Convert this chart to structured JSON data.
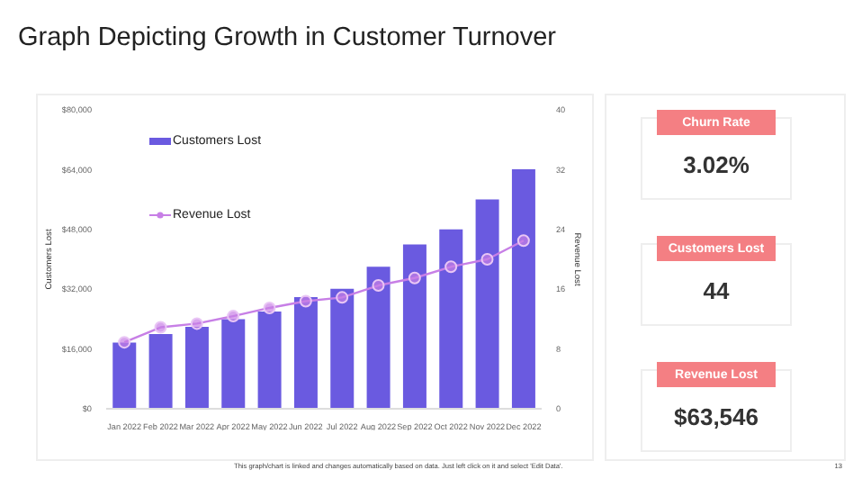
{
  "chart_data": [
    {
      "type": "bar",
      "title": "Graph Depicting Growth in Customer Turnover",
      "ylabel": "Customers Lost",
      "y2label": "Revenue Lost",
      "categories": [
        "Jan 2022",
        "Feb 2022",
        "Mar 2022",
        "Apr 2022",
        "May 2022",
        "Jun 2022",
        "Jul 2022",
        "Aug 2022",
        "Sep 2022",
        "Oct 2022",
        "Nov 2022",
        "Dec 2022"
      ],
      "series": [
        {
          "name": "Customers Lost",
          "type": "bar",
          "color": "#6a5ae0",
          "values": [
            17700,
            20000,
            21900,
            24000,
            26000,
            29900,
            32100,
            38000,
            44000,
            48000,
            56000,
            64100
          ]
        },
        {
          "name": "Revenue Lost",
          "type": "line",
          "axis": "y2",
          "color": "#c77fe6",
          "marker": "circle",
          "line_style": "solid",
          "values": [
            8.9,
            10.9,
            11.4,
            12.4,
            13.5,
            14.4,
            14.9,
            16.5,
            17.5,
            19,
            20,
            22.5
          ]
        }
      ],
      "ylim": [
        0,
        80000
      ],
      "yticks": [
        {
          "value": 0,
          "label": "$0"
        },
        {
          "value": 16000,
          "label": "$16,000"
        },
        {
          "value": 32000,
          "label": "$32,000"
        },
        {
          "value": 48000,
          "label": "$48,000"
        },
        {
          "value": 64000,
          "label": "$64,000"
        },
        {
          "value": 80000,
          "label": "$80,000"
        }
      ],
      "y2lim": [
        0,
        40
      ],
      "y2ticks": [
        0,
        8,
        16,
        24,
        32,
        40
      ],
      "legend": "top left",
      "annotations": [
        "This graph/chart is linked and changes automatically based on data. Just left click on it and select 'Edit Data'.",
        "13"
      ]
    },
    {
      "type": "other",
      "annotations": [
        "Churn Rate",
        "3.02%",
        "Customers Lost",
        "44",
        "Revenue Lost",
        "$63,546"
      ]
    }
  ]
}
